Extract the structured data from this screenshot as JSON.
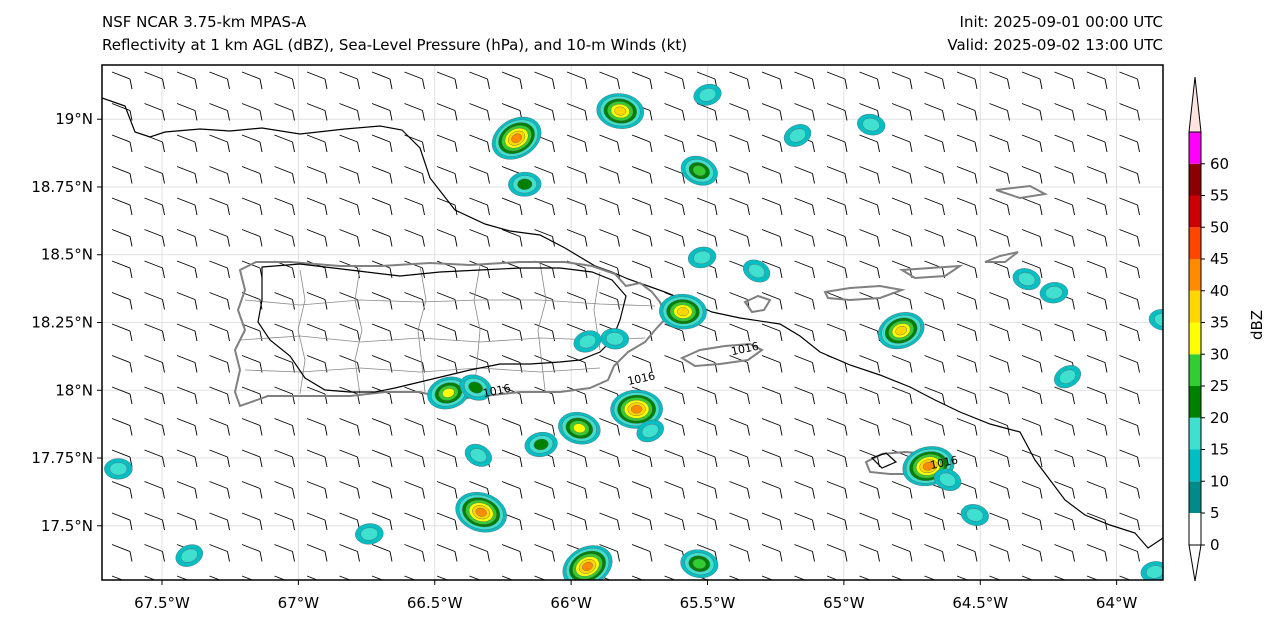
{
  "titles": {
    "left_line1": "NSF NCAR 3.75-km MPAS-A",
    "left_line2": "Reflectivity at 1 km AGL (dBZ), Sea-Level Pressure (hPa), and 10-m Winds (kt)",
    "right_line1": "Init: 2025-09-01 00:00 UTC",
    "right_line2": "Valid: 2025-09-02 13:00 UTC"
  },
  "map": {
    "extent": {
      "lon_min": -67.72,
      "lon_max": -63.83,
      "lat_min": 17.3,
      "lat_max": 19.2
    },
    "lon_ticks": [
      {
        "value": -67.5,
        "label": "67.5°W"
      },
      {
        "value": -67.0,
        "label": "67°W"
      },
      {
        "value": -66.5,
        "label": "66.5°W"
      },
      {
        "value": -66.0,
        "label": "66°W"
      },
      {
        "value": -65.5,
        "label": "65.5°W"
      },
      {
        "value": -65.0,
        "label": "65°W"
      },
      {
        "value": -64.5,
        "label": "64.5°W"
      },
      {
        "value": -64.0,
        "label": "64°W"
      }
    ],
    "lat_ticks": [
      {
        "value": 19.0,
        "label": "19°N"
      },
      {
        "value": 18.75,
        "label": "18.75°N"
      },
      {
        "value": 18.5,
        "label": "18.5°N"
      },
      {
        "value": 18.25,
        "label": "18.25°N"
      },
      {
        "value": 18.0,
        "label": "18°N"
      },
      {
        "value": 17.75,
        "label": "17.75°N"
      },
      {
        "value": 17.5,
        "label": "17.5°N"
      }
    ],
    "isobar_labels": [
      {
        "text": "1016",
        "lon": -66.27,
        "lat": 17.985
      },
      {
        "text": "1016",
        "lon": -65.74,
        "lat": 18.03
      },
      {
        "text": "1016",
        "lon": -65.36,
        "lat": 18.14
      },
      {
        "text": "1016",
        "lon": -64.63,
        "lat": 17.72
      }
    ],
    "wind": {
      "barb": "half-barb 5 kt",
      "direction": "southeasterly"
    },
    "reflectivity_cells": [
      {
        "lon": -66.2,
        "lat": 18.93,
        "dbz": 35
      },
      {
        "lon": -65.82,
        "lat": 19.03,
        "dbz": 30
      },
      {
        "lon": -65.5,
        "lat": 19.09,
        "dbz": 10
      },
      {
        "lon": -65.53,
        "lat": 18.81,
        "dbz": 20
      },
      {
        "lon": -66.17,
        "lat": 18.76,
        "dbz": 15
      },
      {
        "lon": -65.17,
        "lat": 18.94,
        "dbz": 10
      },
      {
        "lon": -64.9,
        "lat": 18.98,
        "dbz": 10
      },
      {
        "lon": -65.52,
        "lat": 18.49,
        "dbz": 10
      },
      {
        "lon": -65.32,
        "lat": 18.44,
        "dbz": 10
      },
      {
        "lon": -65.59,
        "lat": 18.29,
        "dbz": 30
      },
      {
        "lon": -64.79,
        "lat": 18.22,
        "dbz": 30
      },
      {
        "lon": -64.33,
        "lat": 18.41,
        "dbz": 10
      },
      {
        "lon": -64.23,
        "lat": 18.36,
        "dbz": 10
      },
      {
        "lon": -64.18,
        "lat": 18.05,
        "dbz": 10
      },
      {
        "lon": -63.83,
        "lat": 18.26,
        "dbz": 10
      },
      {
        "lon": -66.45,
        "lat": 17.99,
        "dbz": 25
      },
      {
        "lon": -66.35,
        "lat": 18.01,
        "dbz": 15
      },
      {
        "lon": -65.76,
        "lat": 17.93,
        "dbz": 35
      },
      {
        "lon": -65.71,
        "lat": 17.85,
        "dbz": 10
      },
      {
        "lon": -65.97,
        "lat": 17.86,
        "dbz": 25
      },
      {
        "lon": -66.11,
        "lat": 17.8,
        "dbz": 15
      },
      {
        "lon": -66.34,
        "lat": 17.76,
        "dbz": 10
      },
      {
        "lon": -65.84,
        "lat": 18.19,
        "dbz": 10
      },
      {
        "lon": -65.94,
        "lat": 18.18,
        "dbz": 10
      },
      {
        "lon": -66.33,
        "lat": 17.55,
        "dbz": 35
      },
      {
        "lon": -66.74,
        "lat": 17.47,
        "dbz": 10
      },
      {
        "lon": -65.94,
        "lat": 17.35,
        "dbz": 35
      },
      {
        "lon": -65.53,
        "lat": 17.36,
        "dbz": 20
      },
      {
        "lon": -64.69,
        "lat": 17.72,
        "dbz": 35
      },
      {
        "lon": -64.62,
        "lat": 17.67,
        "dbz": 10
      },
      {
        "lon": -67.66,
        "lat": 17.71,
        "dbz": 10
      },
      {
        "lon": -67.4,
        "lat": 17.39,
        "dbz": 10
      },
      {
        "lon": -64.52,
        "lat": 17.54,
        "dbz": 10
      },
      {
        "lon": -63.86,
        "lat": 17.33,
        "dbz": 10
      }
    ]
  },
  "colorbar": {
    "label": "dBZ",
    "ticks": [
      "0",
      "5",
      "10",
      "15",
      "20",
      "25",
      "30",
      "35",
      "40",
      "45",
      "50",
      "55",
      "60"
    ],
    "colors": [
      "#ffffff",
      "#008b8b",
      "#00bfc4",
      "#40e0d0",
      "#008000",
      "#32cd32",
      "#ffff00",
      "#ffd700",
      "#ff8c00",
      "#ff4500",
      "#cc0000",
      "#8b0000",
      "#ff00ff",
      "#ffe4e1"
    ]
  }
}
